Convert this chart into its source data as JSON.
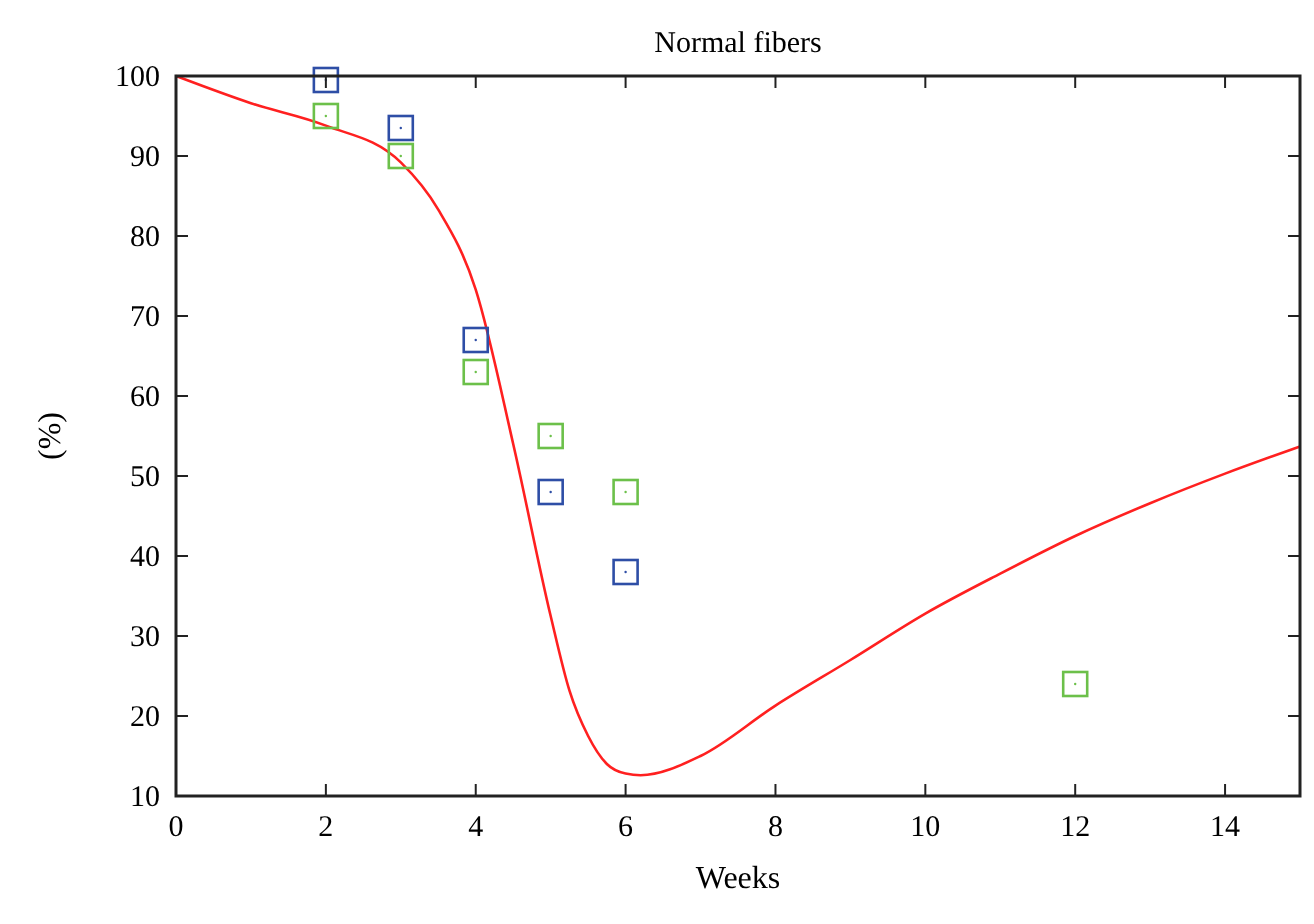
{
  "chart_data": {
    "type": "scatter",
    "title": "Normal fibers",
    "xlabel": "Weeks",
    "ylabel": "(%)",
    "xlim": [
      0,
      15
    ],
    "xticks": [
      0,
      2,
      4,
      6,
      8,
      10,
      12,
      14
    ],
    "ylim": [
      10,
      100
    ],
    "yticks": [
      10,
      20,
      30,
      40,
      50,
      60,
      70,
      80,
      90,
      100
    ],
    "grid": false,
    "marker": "square",
    "series": [
      {
        "type": "line",
        "color": "#ff2020",
        "marker": "none",
        "line_style": "solid",
        "x": [
          0,
          1,
          2,
          3,
          3.5,
          4,
          4.5,
          5,
          5.25,
          5.5,
          5.75,
          6,
          6.2,
          7,
          8,
          9,
          10,
          11,
          12,
          13,
          14,
          15
        ],
        "values": [
          100,
          96.6,
          93.8,
          89.2,
          83.3,
          73.3,
          54,
          32.5,
          23.2,
          17.5,
          14,
          12.8,
          12.6,
          15,
          21.3,
          27,
          32.8,
          37.8,
          42.5,
          46.6,
          50.3,
          53.7
        ]
      },
      {
        "color": "#2e4ea6",
        "x": [
          2,
          3,
          4,
          5,
          6
        ],
        "values": [
          99.5,
          93.5,
          67,
          48,
          38
        ]
      },
      {
        "color": "#6cc04a",
        "x": [
          2,
          3,
          4,
          5,
          6,
          12
        ],
        "values": [
          95,
          90,
          63,
          55,
          48,
          24
        ]
      }
    ]
  }
}
